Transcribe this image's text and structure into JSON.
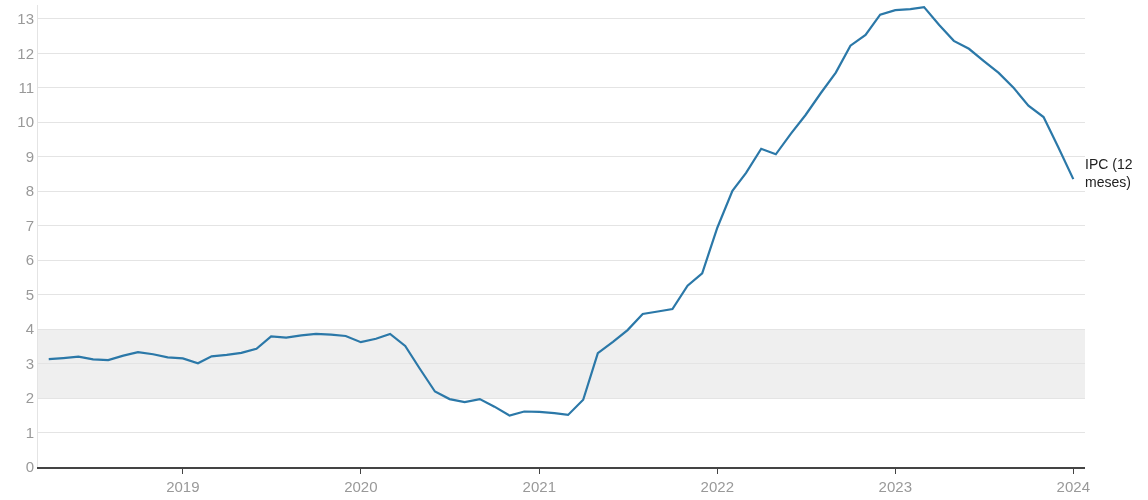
{
  "chart_data": {
    "type": "line",
    "x": [
      "2018-04",
      "2018-05",
      "2018-06",
      "2018-07",
      "2018-08",
      "2018-09",
      "2018-10",
      "2018-11",
      "2018-12",
      "2019-01",
      "2019-02",
      "2019-03",
      "2019-04",
      "2019-05",
      "2019-06",
      "2019-07",
      "2019-08",
      "2019-09",
      "2019-10",
      "2019-11",
      "2019-12",
      "2020-01",
      "2020-02",
      "2020-03",
      "2020-04",
      "2020-05",
      "2020-06",
      "2020-07",
      "2020-08",
      "2020-09",
      "2020-10",
      "2020-11",
      "2020-12",
      "2021-01",
      "2021-02",
      "2021-03",
      "2021-04",
      "2021-05",
      "2021-06",
      "2021-07",
      "2021-08",
      "2021-09",
      "2021-10",
      "2021-11",
      "2021-12",
      "2022-01",
      "2022-02",
      "2022-03",
      "2022-04",
      "2022-05",
      "2022-06",
      "2022-07",
      "2022-08",
      "2022-09",
      "2022-10",
      "2022-11",
      "2022-12",
      "2023-01",
      "2023-02",
      "2023-03",
      "2023-04",
      "2023-05",
      "2023-06",
      "2023-07",
      "2023-08",
      "2023-09",
      "2023-10",
      "2023-11",
      "2023-12",
      "2024-01"
    ],
    "series": [
      {
        "name": "IPC (12 meses)",
        "color": "#2b78a8",
        "values": [
          3.13,
          3.16,
          3.2,
          3.12,
          3.1,
          3.23,
          3.33,
          3.27,
          3.18,
          3.15,
          3.01,
          3.21,
          3.25,
          3.31,
          3.43,
          3.79,
          3.75,
          3.82,
          3.86,
          3.84,
          3.8,
          3.62,
          3.72,
          3.86,
          3.51,
          2.85,
          2.19,
          1.97,
          1.88,
          1.97,
          1.75,
          1.49,
          1.61,
          1.6,
          1.56,
          1.51,
          1.95,
          3.3,
          3.63,
          3.97,
          4.44,
          4.51,
          4.58,
          5.26,
          5.62,
          6.94,
          8.01,
          8.53,
          9.23,
          9.07,
          9.67,
          10.21,
          10.84,
          11.44,
          12.22,
          12.53,
          13.12,
          13.25,
          13.28,
          13.34,
          12.82,
          12.36,
          12.13,
          11.78,
          11.43,
          10.99,
          10.48,
          10.15,
          9.28,
          8.35
        ]
      }
    ],
    "xlim": [
      "2018-03-10",
      "2024-01-25"
    ],
    "xticks": [
      {
        "value": "2019-01-01",
        "label": "2019"
      },
      {
        "value": "2020-01-01",
        "label": "2020"
      },
      {
        "value": "2021-01-01",
        "label": "2021"
      },
      {
        "value": "2022-01-01",
        "label": "2022"
      },
      {
        "value": "2023-01-01",
        "label": "2023"
      },
      {
        "value": "2024-01-01",
        "label": "2024"
      }
    ],
    "ylim": [
      0,
      13.4
    ],
    "yticks": [
      0,
      1,
      2,
      3,
      4,
      5,
      6,
      7,
      8,
      9,
      10,
      11,
      12,
      13
    ],
    "bands": [
      {
        "axis": "y",
        "from": 2,
        "to": 4,
        "color": "#efefef"
      }
    ],
    "grid": "y",
    "legend": false,
    "marker": "none",
    "line_style": "solid"
  }
}
